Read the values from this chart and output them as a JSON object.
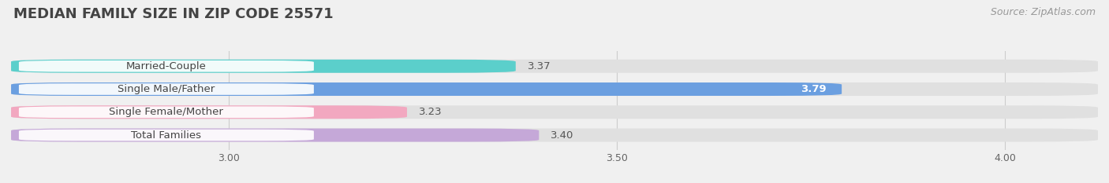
{
  "title": "MEDIAN FAMILY SIZE IN ZIP CODE 25571",
  "source": "Source: ZipAtlas.com",
  "categories": [
    "Married-Couple",
    "Single Male/Father",
    "Single Female/Mother",
    "Total Families"
  ],
  "values": [
    3.37,
    3.79,
    3.23,
    3.4
  ],
  "bar_colors": [
    "#5BCFCB",
    "#6B9FE0",
    "#F2A8C0",
    "#C5A8D8"
  ],
  "label_colors": [
    "#333333",
    "#ffffff",
    "#333333",
    "#333333"
  ],
  "xlim": [
    2.72,
    4.12
  ],
  "xticks": [
    3.0,
    3.5,
    4.0
  ],
  "bar_height": 0.58,
  "background_color": "#f0f0f0",
  "bar_background_color": "#e0e0e0",
  "title_fontsize": 13,
  "source_fontsize": 9,
  "label_fontsize": 9.5,
  "value_fontsize": 9.5,
  "tick_fontsize": 9
}
